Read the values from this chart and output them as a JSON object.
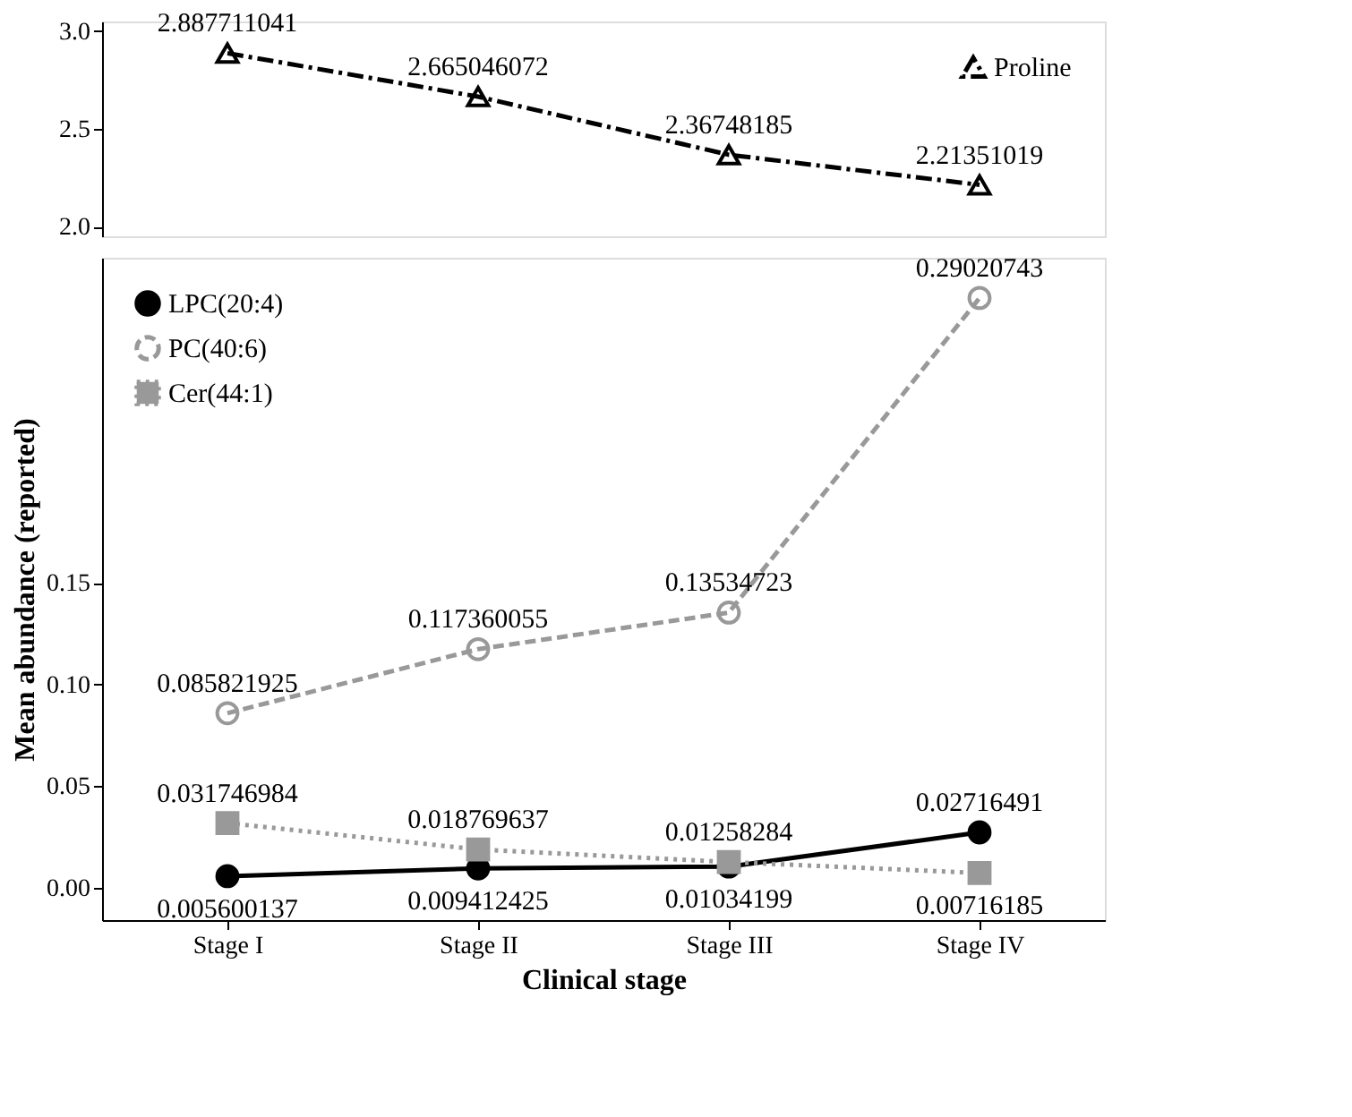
{
  "chart_data": [
    {
      "type": "line",
      "categories": [
        null,
        null,
        null,
        null
      ],
      "ylim": [
        1.95,
        3.05
      ],
      "yticks": [
        {
          "value": 2,
          "label": "2.0"
        },
        {
          "value": 2.5,
          "label": "2.5"
        },
        {
          "value": 3,
          "label": "3.0"
        }
      ],
      "tick_labels": "y",
      "legend": "top right",
      "data_labels": true,
      "series": [
        {
          "name": "Proline",
          "color": "#000000",
          "marker": "triangle_open",
          "line_style": "dashdot",
          "values": [
            2.887711041,
            2.665046072,
            2.36748185,
            2.21351019
          ]
        }
      ]
    },
    {
      "type": "line",
      "xlabel": "Clinical stage",
      "ylabel": "Mean abundance (reported)",
      "categories": [
        "Stage I",
        "Stage II",
        "Stage III",
        "Stage IV"
      ],
      "ylim": [
        -0.016,
        0.31
      ],
      "yticks": [
        {
          "value": 0,
          "label": "0.00"
        },
        {
          "value": 0.05,
          "label": "0.05"
        },
        {
          "value": 0.1,
          "label": "0.10"
        },
        {
          "value": 0.15,
          "label": "0.15"
        }
      ],
      "legend": "top left",
      "data_labels": true,
      "series": [
        {
          "name": "LPC(20:4)",
          "color": "#000000",
          "marker": "circle",
          "line_style": "solid",
          "values": [
            0.005600137,
            0.009412425,
            0.01034199,
            0.02716491
          ]
        },
        {
          "name": "PC(40:6)",
          "color": "#999999",
          "marker": "circle_open",
          "line_style": "dashed",
          "values": [
            0.085821925,
            0.117360055,
            0.13534723,
            0.29020743
          ]
        },
        {
          "name": "Cer(44:1)",
          "color": "#999999",
          "marker": "square",
          "line_style": "dotted",
          "values": [
            0.031746984,
            0.018769637,
            0.01258284,
            0.00716185
          ]
        }
      ]
    }
  ]
}
